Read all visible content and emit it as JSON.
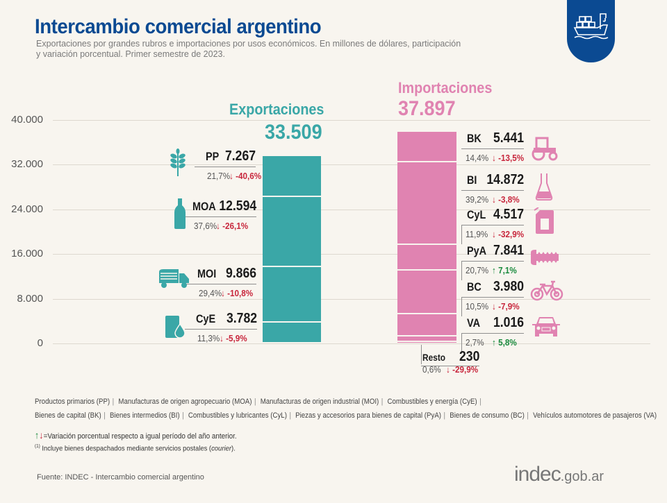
{
  "header": {
    "title": "Intercambio comercial argentino",
    "subtitle": "Exportaciones por grandes rubros e importaciones por usos económicos. En millones de dólares, participación y variación porcentual. Primer semestre de 2023.",
    "badge_icon": "cargo-ship-icon"
  },
  "colors": {
    "title": "#0b4a92",
    "exports": "#3aa7a7",
    "imports": "#e083b1",
    "variation_down": "#c8273d",
    "variation_up": "#198a3d"
  },
  "chart_data": {
    "type": "bar",
    "subtype": "stacked",
    "title": "Intercambio comercial argentino",
    "unit": "millones de dólares",
    "period": "Primer semestre de 2023",
    "ylim": [
      0,
      40000
    ],
    "yticks": [
      "0",
      "8.000",
      "16.000",
      "24.000",
      "32.000",
      "40.000"
    ],
    "ytick_values": [
      0,
      8000,
      16000,
      24000,
      32000,
      40000
    ],
    "grid": true,
    "series": [
      {
        "name": "Exportaciones",
        "total": 33509,
        "total_label": "33.509",
        "segments_top_to_bottom": [
          {
            "code": "PP",
            "value": 7267,
            "value_label": "7.267",
            "share": "21,7%",
            "variation": "-40,6%",
            "direction": "down",
            "icon": "wheat-icon"
          },
          {
            "code": "MOA",
            "value": 12594,
            "value_label": "12.594",
            "share": "37,6%",
            "variation": "-26,1%",
            "direction": "down",
            "icon": "bottle-icon"
          },
          {
            "code": "MOI",
            "value": 9866,
            "value_label": "9.866",
            "share": "29,4%",
            "variation": "-10,8%",
            "direction": "down",
            "icon": "truck-icon"
          },
          {
            "code": "CyE",
            "value": 3782,
            "value_label": "3.782",
            "share": "11,3%",
            "variation": "-5,9%",
            "direction": "down",
            "icon": "oil-barrel-icon"
          }
        ]
      },
      {
        "name": "Importaciones",
        "total": 37897,
        "total_label": "37.897",
        "segments_top_to_bottom": [
          {
            "code": "BK",
            "value": 5441,
            "value_label": "5.441",
            "share": "14,4%",
            "variation": "-13,5%",
            "direction": "down",
            "icon": "tractor-icon"
          },
          {
            "code": "BI",
            "value": 14872,
            "value_label": "14.872",
            "share": "39,2%",
            "variation": "-3,8%",
            "direction": "down",
            "icon": "flask-icon"
          },
          {
            "code": "CyL",
            "value": 4517,
            "value_label": "4.517",
            "share": "11,9%",
            "variation": "-32,9%",
            "direction": "down",
            "icon": "fuel-can-icon"
          },
          {
            "code": "PyA",
            "value": 7841,
            "value_label": "7.841",
            "share": "20,7%",
            "variation": "7,1%",
            "direction": "up",
            "icon": "screw-icon"
          },
          {
            "code": "BC",
            "value": 3980,
            "value_label": "3.980",
            "share": "10,5%",
            "variation": "-7,9%",
            "direction": "down",
            "icon": "bicycle-icon"
          },
          {
            "code": "VA",
            "value": 1016,
            "value_label": "1.016",
            "share": "2,7%",
            "variation": "5,8%",
            "direction": "up",
            "icon": "car-icon"
          },
          {
            "code": "Resto",
            "value": 230,
            "value_label": "230",
            "share": "0,6%",
            "variation": "-29,9%",
            "direction": "down",
            "icon": null
          }
        ]
      }
    ]
  },
  "legend": {
    "line1": [
      "Productos primarios (PP)",
      "Manufacturas de origen agropecuario (MOA)",
      "Manufacturas de origen industrial (MOI)",
      "Combustibles y energía (CyE)"
    ],
    "line2": [
      "Bienes de capital (BK)",
      "Bienes intermedios (BI)",
      "Combustibles y lubricantes (CyL)",
      "Piezas y accesorios para bienes de capital (PyA)",
      "Bienes de consumo (BC)",
      "Vehículos automotores de pasajeros (VA)"
    ],
    "arrows_symbol": "↑↓",
    "variation_note": "=Variación porcentual respecto a igual período del año anterior.",
    "courier_marker": "(1)",
    "courier_note_pre": "Incluye bienes despachados mediante servicios postales (",
    "courier_note_italic": "courier",
    "courier_note_post": ")."
  },
  "footer": {
    "source": "Fuente: INDEC  - Intercambio comercial argentino",
    "logo_main": "indec",
    "logo_suffix": ".gob.ar"
  }
}
